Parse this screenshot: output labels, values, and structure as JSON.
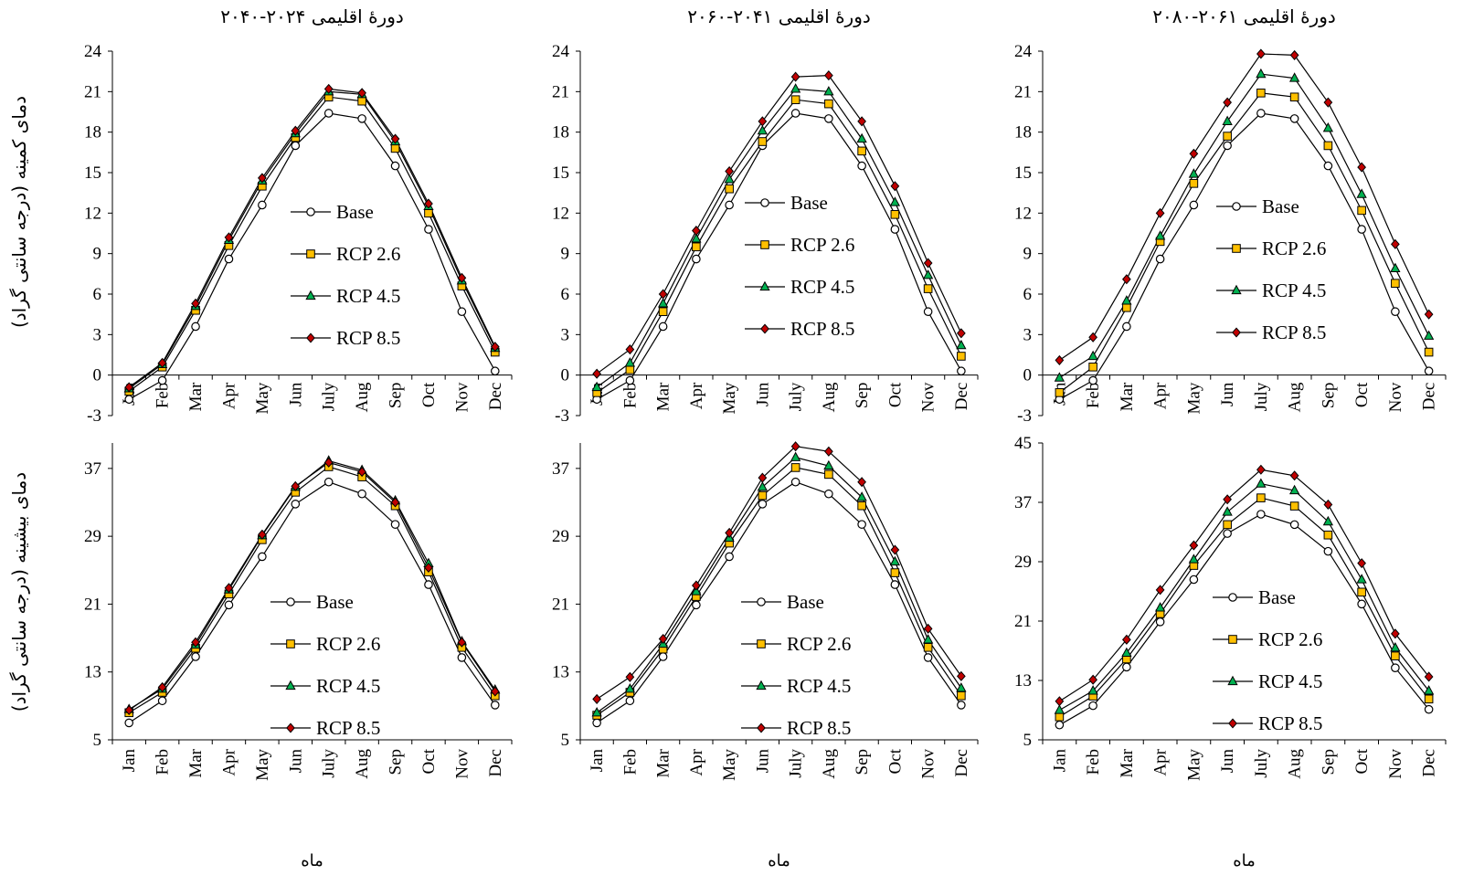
{
  "figure": {
    "row_labels": [
      "دمای کمینه (درجه سانتی گراد)",
      "دمای بیشینه (درجه سانتی گراد)"
    ],
    "series_colors": {
      "Base": "#ffffff",
      "RCP 2.6": "#ffc000",
      "RCP 4.5": "#00b050",
      "RCP 8.5": "#c00000"
    },
    "series_markers": {
      "Base": "circle",
      "RCP 2.6": "square",
      "RCP 4.5": "triangle",
      "RCP 8.5": "diamond"
    }
  },
  "chart_data": [
    {
      "type": "line",
      "title": "دورهٔ اقلیمی ۲۰۲۴-۲۰۴۰",
      "xlabel": "",
      "ylabel": "دمای کمینه (درجه سانتی گراد)",
      "ylim": [
        -3,
        24
      ],
      "yticks": [
        -3,
        0,
        3,
        6,
        9,
        12,
        15,
        18,
        21,
        24
      ],
      "categories": [
        "Jan",
        "Feb",
        "Mar",
        "Apr",
        "May",
        "Jun",
        "July",
        "Aug",
        "Sep",
        "Oct",
        "Nov",
        "Dec"
      ],
      "legend": "center",
      "series": [
        {
          "name": "Base",
          "values": [
            -1.8,
            -0.4,
            3.6,
            8.6,
            12.6,
            17.0,
            19.4,
            19.0,
            15.5,
            10.8,
            4.7,
            0.3
          ]
        },
        {
          "name": "RCP 2.6",
          "values": [
            -1.2,
            0.6,
            4.8,
            9.6,
            14.0,
            17.6,
            20.6,
            20.3,
            16.8,
            12.0,
            6.6,
            1.7
          ]
        },
        {
          "name": "RCP 4.5",
          "values": [
            -1.0,
            0.8,
            5.1,
            10.0,
            14.4,
            17.9,
            21.0,
            20.8,
            17.3,
            12.5,
            7.0,
            2.0
          ]
        },
        {
          "name": "RCP 8.5",
          "values": [
            -0.9,
            0.9,
            5.3,
            10.2,
            14.6,
            18.1,
            21.2,
            20.9,
            17.5,
            12.7,
            7.2,
            2.1
          ]
        }
      ]
    },
    {
      "type": "line",
      "title": "دورهٔ اقلیمی ۲۰۴۱-۲۰۶۰",
      "xlabel": "",
      "ylabel": "",
      "ylim": [
        -3,
        24
      ],
      "yticks": [
        -3,
        0,
        3,
        6,
        9,
        12,
        15,
        18,
        21,
        24
      ],
      "categories": [
        "Jan",
        "Feb",
        "Mar",
        "Apr",
        "May",
        "Jun",
        "July",
        "Aug",
        "Sep",
        "Oct",
        "Nov",
        "Dec"
      ],
      "legend": "center",
      "series": [
        {
          "name": "Base",
          "values": [
            -1.8,
            -0.4,
            3.6,
            8.6,
            12.6,
            17.0,
            19.4,
            19.0,
            15.5,
            10.8,
            4.7,
            0.3
          ]
        },
        {
          "name": "RCP 2.6",
          "values": [
            -1.3,
            0.4,
            4.7,
            9.5,
            13.8,
            17.3,
            20.4,
            20.1,
            16.6,
            11.9,
            6.4,
            1.4
          ]
        },
        {
          "name": "RCP 4.5",
          "values": [
            -0.9,
            0.9,
            5.3,
            10.1,
            14.5,
            18.1,
            21.2,
            21.0,
            17.5,
            12.8,
            7.4,
            2.2
          ]
        },
        {
          "name": "RCP 8.5",
          "values": [
            0.1,
            1.9,
            6.0,
            10.7,
            15.1,
            18.8,
            22.1,
            22.2,
            18.8,
            14.0,
            8.3,
            3.1
          ]
        }
      ]
    },
    {
      "type": "line",
      "title": "دورهٔ اقلیمی ۲۰۶۱-۲۰۸۰",
      "xlabel": "",
      "ylabel": "",
      "ylim": [
        -3,
        24
      ],
      "yticks": [
        -3,
        0,
        3,
        6,
        9,
        12,
        15,
        18,
        21,
        24
      ],
      "categories": [
        "Jan",
        "Feb",
        "Mar",
        "Apr",
        "May",
        "Jun",
        "July",
        "Aug",
        "Sep",
        "Oct",
        "Nov",
        "Dec"
      ],
      "legend": "center",
      "series": [
        {
          "name": "Base",
          "values": [
            -1.8,
            -0.4,
            3.6,
            8.6,
            12.6,
            17.0,
            19.4,
            19.0,
            15.5,
            10.8,
            4.7,
            0.3
          ]
        },
        {
          "name": "RCP 2.6",
          "values": [
            -1.3,
            0.6,
            5.0,
            9.9,
            14.2,
            17.7,
            20.9,
            20.6,
            17.0,
            12.2,
            6.8,
            1.7
          ]
        },
        {
          "name": "RCP 4.5",
          "values": [
            -0.2,
            1.4,
            5.5,
            10.3,
            14.9,
            18.8,
            22.3,
            22.0,
            18.3,
            13.4,
            7.9,
            2.9
          ]
        },
        {
          "name": "RCP 8.5",
          "values": [
            1.1,
            2.8,
            7.1,
            12.0,
            16.4,
            20.2,
            23.8,
            23.7,
            20.2,
            15.4,
            9.7,
            4.5
          ]
        }
      ]
    },
    {
      "type": "line",
      "title": "",
      "xlabel": "ماه",
      "ylabel": "دمای بیشینه (درجه سانتی گراد)",
      "ylim": [
        5,
        40
      ],
      "yticks": [
        5,
        13,
        21,
        29,
        37
      ],
      "categories": [
        "Jan",
        "Feb",
        "Mar",
        "Apr",
        "May",
        "Jun",
        "July",
        "Aug",
        "Sep",
        "Oct",
        "Nov",
        "Dec"
      ],
      "legend": "center",
      "series": [
        {
          "name": "Base",
          "values": [
            7.0,
            9.6,
            14.8,
            20.9,
            26.6,
            32.8,
            35.4,
            34.0,
            30.4,
            23.3,
            14.7,
            9.1
          ]
        },
        {
          "name": "RCP 2.6",
          "values": [
            8.2,
            10.6,
            15.8,
            22.2,
            28.6,
            34.2,
            37.2,
            36.0,
            32.6,
            24.8,
            15.9,
            10.2
          ]
        },
        {
          "name": "RCP 4.5",
          "values": [
            8.6,
            11.0,
            16.2,
            22.7,
            29.1,
            34.8,
            37.9,
            36.8,
            33.2,
            25.8,
            16.6,
            10.9
          ]
        },
        {
          "name": "RCP 8.5",
          "values": [
            8.5,
            11.2,
            16.5,
            22.9,
            29.2,
            34.9,
            37.7,
            36.6,
            33.0,
            25.3,
            16.5,
            10.7
          ]
        }
      ]
    },
    {
      "type": "line",
      "title": "",
      "xlabel": "ماه",
      "ylabel": "",
      "ylim": [
        5,
        40
      ],
      "yticks": [
        5,
        13,
        21,
        29,
        37
      ],
      "categories": [
        "Jan",
        "Feb",
        "Mar",
        "Apr",
        "May",
        "Jun",
        "July",
        "Aug",
        "Sep",
        "Oct",
        "Nov",
        "Dec"
      ],
      "legend": "center",
      "series": [
        {
          "name": "Base",
          "values": [
            7.0,
            9.6,
            14.8,
            20.9,
            26.6,
            32.8,
            35.4,
            34.0,
            30.4,
            23.3,
            14.7,
            9.1
          ]
        },
        {
          "name": "RCP 2.6",
          "values": [
            7.9,
            10.6,
            15.7,
            21.9,
            28.2,
            33.8,
            37.1,
            36.3,
            32.6,
            24.7,
            15.9,
            10.2
          ]
        },
        {
          "name": "RCP 4.5",
          "values": [
            8.2,
            11.0,
            16.3,
            22.5,
            28.8,
            34.8,
            38.3,
            37.3,
            33.6,
            26.0,
            16.8,
            11.1
          ]
        },
        {
          "name": "RCP 8.5",
          "values": [
            9.8,
            12.4,
            16.9,
            23.2,
            29.4,
            35.9,
            39.6,
            39.0,
            35.4,
            27.4,
            18.1,
            12.5
          ]
        }
      ]
    },
    {
      "type": "line",
      "title": "",
      "xlabel": "ماه",
      "ylabel": "",
      "ylim": [
        5,
        45
      ],
      "yticks": [
        5,
        13,
        21,
        29,
        37,
        45
      ],
      "categories": [
        "Jan",
        "Feb",
        "Mar",
        "Apr",
        "May",
        "Jun",
        "July",
        "Aug",
        "Sep",
        "Oct",
        "Nov",
        "Dec"
      ],
      "legend": "center",
      "series": [
        {
          "name": "Base",
          "values": [
            7.0,
            9.6,
            14.8,
            20.9,
            26.6,
            32.8,
            35.4,
            34.0,
            30.4,
            23.3,
            14.7,
            9.1
          ]
        },
        {
          "name": "RCP 2.6",
          "values": [
            8.1,
            10.9,
            15.9,
            22.0,
            28.5,
            34.0,
            37.6,
            36.5,
            32.6,
            24.9,
            16.3,
            10.5
          ]
        },
        {
          "name": "RCP 4.5",
          "values": [
            9.0,
            11.6,
            16.7,
            22.8,
            29.3,
            35.7,
            39.5,
            38.6,
            34.4,
            26.6,
            17.4,
            11.6
          ]
        },
        {
          "name": "RCP 8.5",
          "values": [
            10.2,
            13.1,
            18.5,
            25.2,
            31.2,
            37.4,
            41.4,
            40.6,
            36.7,
            28.8,
            19.3,
            13.5
          ]
        }
      ]
    }
  ]
}
